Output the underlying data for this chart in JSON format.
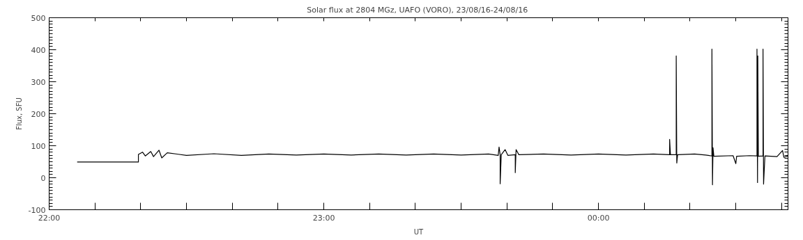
{
  "chart_data": {
    "type": "line",
    "title": "Solar flux at 2804 MGz, UAFO (VORO),  23/08/16-24/08/16",
    "xlabel": "UT",
    "ylabel": "Flux, SFU",
    "xlim": [
      22,
      24.69
    ],
    "ylim": [
      -100,
      500
    ],
    "xticks": [
      {
        "value": 22,
        "label": "22:00"
      },
      {
        "value": 22.1667,
        "label": null
      },
      {
        "value": 22.3333,
        "label": null
      },
      {
        "value": 22.5,
        "label": null
      },
      {
        "value": 22.6667,
        "label": null
      },
      {
        "value": 22.8333,
        "label": null
      },
      {
        "value": 23,
        "label": "23:00"
      },
      {
        "value": 23.1667,
        "label": null
      },
      {
        "value": 23.3333,
        "label": null
      },
      {
        "value": 23.5,
        "label": null
      },
      {
        "value": 23.6667,
        "label": null
      },
      {
        "value": 23.8333,
        "label": null
      },
      {
        "value": 24,
        "label": "00:00"
      },
      {
        "value": 24.1667,
        "label": null
      },
      {
        "value": 24.3333,
        "label": null
      },
      {
        "value": 24.5,
        "label": null
      },
      {
        "value": 24.6667,
        "label": null
      }
    ],
    "yticks": [
      -100,
      0,
      100,
      200,
      300,
      400,
      500
    ],
    "grid": false,
    "marker": "none",
    "line_style": "solid",
    "series": [
      {
        "color": "#000000",
        "x": [
          22.102,
          22.325,
          22.325,
          22.34,
          22.35,
          22.37,
          22.38,
          22.4,
          22.41,
          22.43,
          22.5,
          22.6,
          22.7,
          22.8,
          22.9,
          23.0,
          23.1,
          23.2,
          23.3,
          23.4,
          23.5,
          23.6,
          23.635,
          23.638,
          23.642,
          23.642,
          23.646,
          23.66,
          23.67,
          23.697,
          23.697,
          23.7,
          23.71,
          23.8,
          23.9,
          24.0,
          24.1,
          24.2,
          24.259,
          24.259,
          24.262,
          24.283,
          24.283,
          24.285,
          24.288,
          24.35,
          24.39,
          24.413,
          24.413,
          24.415,
          24.417,
          24.42,
          24.49,
          24.5,
          24.503,
          24.55,
          24.577,
          24.577,
          24.579,
          24.58,
          24.582,
          24.599,
          24.599,
          24.601,
          24.603,
          24.606,
          24.65,
          24.67,
          24.675,
          24.69
        ],
        "values": [
          49,
          49,
          73,
          80,
          68,
          82,
          66,
          86,
          62,
          78,
          70,
          75,
          70,
          74,
          71,
          74,
          71,
          74,
          71,
          74,
          71,
          74,
          70,
          96,
          72,
          -19,
          72,
          88,
          70,
          72,
          16,
          88,
          72,
          74,
          71,
          74,
          71,
          74,
          72,
          120,
          72,
          72,
          381,
          46,
          72,
          74,
          71,
          68,
          402,
          -22,
          94,
          67,
          69,
          44,
          67,
          69,
          68,
          402,
          -15,
          381,
          67,
          68,
          402,
          -20,
          16,
          68,
          66,
          85,
          64,
          68
        ]
      }
    ]
  }
}
